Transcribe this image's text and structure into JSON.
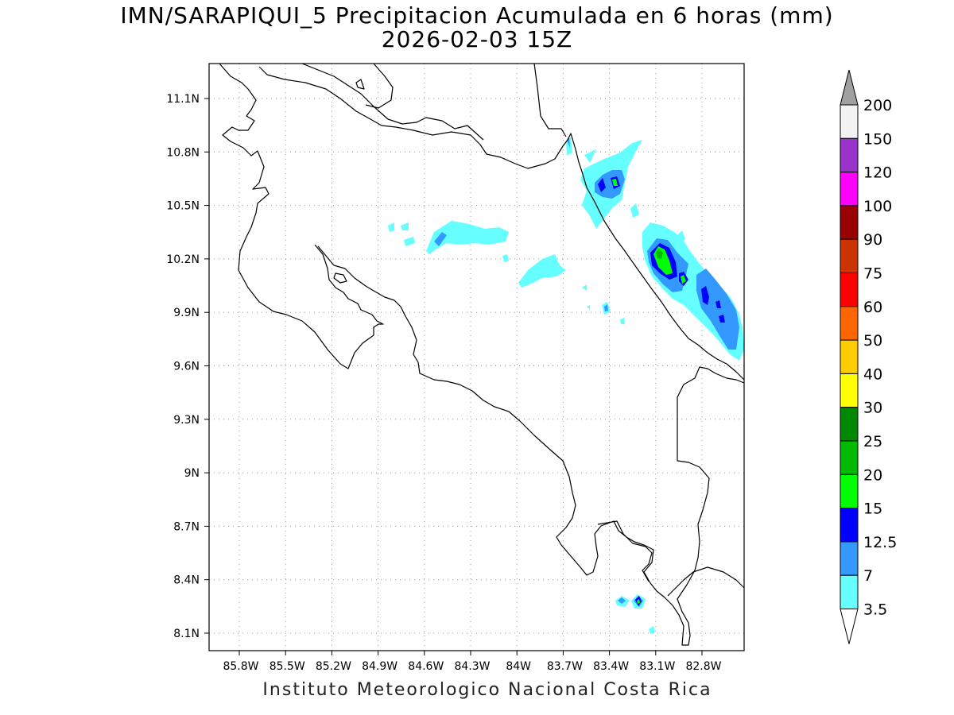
{
  "title_line1": "IMN/SARAPIQUI_5 Precipitacion Acumulada en 6 horas (mm)",
  "title_line2": "2026-02-03 15Z",
  "footer": "Instituto Meteorologico Nacional Costa Rica",
  "lat_labels": [
    "11.1N",
    "10.8N",
    "10.5N",
    "10.2N",
    "9.9N",
    "9.6N",
    "9.3N",
    "9N",
    "8.7N",
    "8.4N",
    "8.1N"
  ],
  "lon_labels": [
    "85.8W",
    "85.5W",
    "85.2W",
    "84.9W",
    "84.6W",
    "84.3W",
    "84W",
    "83.7W",
    "83.4W",
    "83.1W",
    "82.8W"
  ],
  "colorbar": {
    "labels": [
      "200",
      "150",
      "120",
      "100",
      "90",
      "75",
      "60",
      "50",
      "40",
      "30",
      "25",
      "20",
      "15",
      "12.5",
      "7",
      "3.5"
    ],
    "colors": [
      "#f2f2f2",
      "#9933cc",
      "#ff00ff",
      "#990000",
      "#cc3300",
      "#ff0000",
      "#ff6600",
      "#ffcc00",
      "#ffff00",
      "#008800",
      "#00bb00",
      "#00ff00",
      "#0000ff",
      "#3399ff",
      "#66ffff"
    ],
    "over_color": "#a0a0a0",
    "under_color": "#ffffff"
  }
}
